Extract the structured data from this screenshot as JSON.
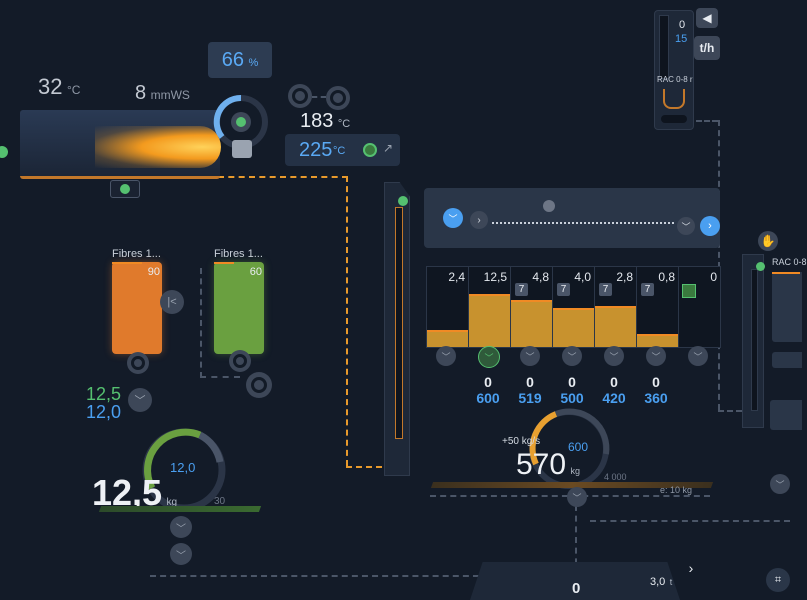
{
  "furnace": {
    "temp_value": "32",
    "temp_unit": "°C",
    "pressure_value": "8",
    "pressure_unit": "mmWS",
    "percent_value": "66",
    "percent_unit": "%",
    "temp_actual": "183",
    "temp_actual_unit": "°C",
    "temp_set": "225",
    "temp_set_unit": "°C",
    "flame_color": "#f39a1e"
  },
  "top_right": {
    "value_0": "0",
    "value_15": "15",
    "unit": "t/h",
    "label": "RAC 0-8 r"
  },
  "fibres": [
    {
      "label": "Fibres 1...",
      "value": "90",
      "color": "#e07a2c"
    },
    {
      "label": "Fibres 1...",
      "value": "60",
      "color": "#6aa040"
    }
  ],
  "fibre_readout": {
    "green": "12,5",
    "blue": "12,0"
  },
  "weigh_left": {
    "value": "12,5",
    "unit": "kg",
    "set": "12,0",
    "scale": "30"
  },
  "bins": [
    {
      "top": "2,4",
      "badge": "",
      "fill": 0.25,
      "val_w": "",
      "val_b": ""
    },
    {
      "top": "12,5",
      "badge": "",
      "fill": 0.85,
      "val_w": "0",
      "val_b": "600"
    },
    {
      "top": "4,8",
      "badge": "7",
      "fill": 0.75,
      "val_w": "0",
      "val_b": "519"
    },
    {
      "top": "4,0",
      "badge": "7",
      "fill": 0.62,
      "val_w": "0",
      "val_b": "500"
    },
    {
      "top": "2,8",
      "badge": "7",
      "fill": 0.65,
      "val_w": "0",
      "val_b": "420"
    },
    {
      "top": "0,8",
      "badge": "7",
      "fill": 0.18,
      "val_w": "0",
      "val_b": "360"
    },
    {
      "top": "0",
      "badge": "",
      "fill": 0.0,
      "val_w": "",
      "val_b": ""
    }
  ],
  "weigh_center": {
    "rate": "+50 kg/s",
    "value": "570",
    "unit": "kg",
    "set": "600",
    "scale": "4 000",
    "e": "e: 10 kg"
  },
  "right_edge": {
    "label": "RAC 0-8"
  },
  "bottom": {
    "value": "0",
    "right_value": "3,0",
    "right_unit": "t"
  },
  "colors": {
    "accent": "#4a9ff0",
    "orange": "#e89a2c",
    "green": "#55c070",
    "bg": "#131b28"
  }
}
